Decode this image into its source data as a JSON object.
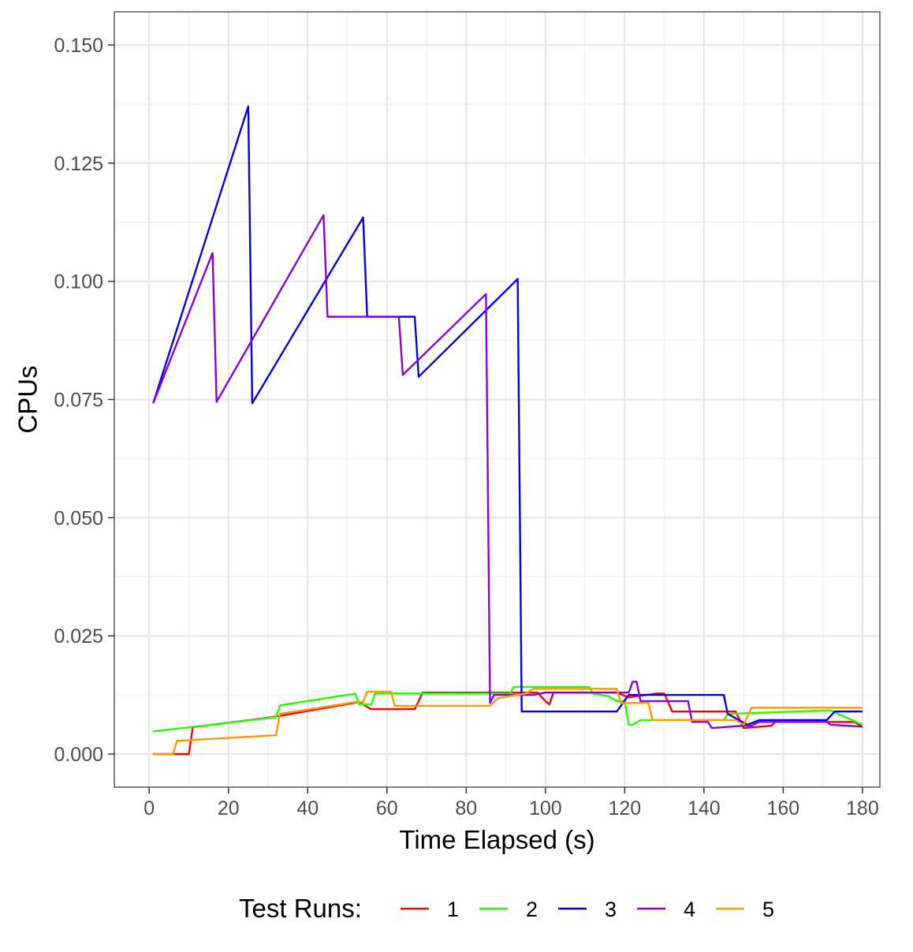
{
  "chart_data": {
    "type": "line",
    "title": "",
    "xlabel": "Time Elapsed (s)",
    "ylabel": "CPUs",
    "xlim": [
      -8.8,
      184.4
    ],
    "ylim": [
      -0.007,
      0.157
    ],
    "x_ticks": [
      0,
      20,
      40,
      60,
      80,
      100,
      120,
      140,
      160,
      180
    ],
    "x_tick_labels": [
      "0",
      "20",
      "40",
      "60",
      "80",
      "100",
      "120",
      "140",
      "160",
      "180"
    ],
    "y_ticks": [
      0,
      0.025,
      0.05,
      0.075,
      0.1,
      0.125,
      0.15
    ],
    "y_tick_labels": [
      "0.000",
      "0.025",
      "0.050",
      "0.075",
      "0.100",
      "0.125",
      "0.150"
    ],
    "grid": true,
    "legend": {
      "title": "Test Runs:",
      "position": "bottom"
    },
    "series": [
      {
        "name": "1",
        "color": "#FF0000",
        "points": [
          [
            1,
            0
          ],
          [
            10,
            0
          ],
          [
            11,
            0.0057
          ],
          [
            31,
            0.0078
          ],
          [
            53,
            0.011
          ],
          [
            56,
            0.0095
          ],
          [
            67,
            0.0095
          ],
          [
            69,
            0.013
          ],
          [
            98,
            0.013
          ],
          [
            100,
            0.0112
          ],
          [
            101,
            0.0105
          ],
          [
            102,
            0.013
          ],
          [
            118,
            0.013
          ],
          [
            121,
            0.012
          ],
          [
            128,
            0.0128
          ],
          [
            130,
            0.0128
          ],
          [
            132,
            0.009
          ],
          [
            148,
            0.009
          ],
          [
            150,
            0.0055
          ],
          [
            157,
            0.006
          ],
          [
            158,
            0.0068
          ],
          [
            171,
            0.0068
          ],
          [
            178,
            0.0068
          ],
          [
            180,
            0.0057
          ]
        ]
      },
      {
        "name": "2",
        "color": "#22FF00",
        "points": [
          [
            1,
            0.0048
          ],
          [
            32,
            0.0078
          ],
          [
            33,
            0.0103
          ],
          [
            52,
            0.0128
          ],
          [
            53,
            0.0105
          ],
          [
            56,
            0.0105
          ],
          [
            57,
            0.0128
          ],
          [
            91,
            0.0128
          ],
          [
            92,
            0.0142
          ],
          [
            111,
            0.0142
          ],
          [
            112,
            0.0128
          ],
          [
            116,
            0.0122
          ],
          [
            118,
            0.0112
          ],
          [
            120,
            0.0112
          ],
          [
            121,
            0.0062
          ],
          [
            122,
            0.0062
          ],
          [
            124,
            0.0072
          ],
          [
            145,
            0.0072
          ],
          [
            146,
            0.0085
          ],
          [
            170,
            0.0092
          ],
          [
            172,
            0.0092
          ],
          [
            180,
            0.0062
          ]
        ]
      },
      {
        "name": "3",
        "color": "#0000EE",
        "points": [
          [
            1,
            0.0742
          ],
          [
            25,
            0.137
          ],
          [
            26,
            0.0742
          ],
          [
            54,
            0.1135
          ],
          [
            55,
            0.0925
          ],
          [
            67,
            0.0925
          ],
          [
            68,
            0.0798
          ],
          [
            93,
            0.1005
          ],
          [
            94,
            0.009
          ],
          [
            118,
            0.009
          ],
          [
            121,
            0.0125
          ],
          [
            145,
            0.0125
          ],
          [
            146,
            0.0085
          ],
          [
            151,
            0.0062
          ],
          [
            154,
            0.0072
          ],
          [
            171,
            0.0072
          ],
          [
            173,
            0.009
          ],
          [
            180,
            0.009
          ]
        ]
      },
      {
        "name": "4",
        "color": "#8A00E6",
        "points": [
          [
            1,
            0.0742
          ],
          [
            16,
            0.106
          ],
          [
            17,
            0.0745
          ],
          [
            44,
            0.114
          ],
          [
            45,
            0.0925
          ],
          [
            63,
            0.0925
          ],
          [
            64,
            0.0802
          ],
          [
            85,
            0.0973
          ],
          [
            86,
            0.0108
          ],
          [
            87,
            0.0125
          ],
          [
            97,
            0.0125
          ],
          [
            100,
            0.013
          ],
          [
            118,
            0.013
          ],
          [
            121,
            0.013
          ],
          [
            122,
            0.0153
          ],
          [
            123,
            0.0153
          ],
          [
            124,
            0.0112
          ],
          [
            136,
            0.0112
          ],
          [
            137,
            0.0068
          ],
          [
            141,
            0.0068
          ],
          [
            142,
            0.0055
          ],
          [
            150,
            0.006
          ],
          [
            152,
            0.006
          ],
          [
            154,
            0.0068
          ],
          [
            171,
            0.0068
          ],
          [
            172,
            0.0062
          ],
          [
            180,
            0.0058
          ]
        ]
      },
      {
        "name": "5",
        "color": "#FF9900",
        "points": [
          [
            1,
            0
          ],
          [
            6,
            0
          ],
          [
            7,
            0.0028
          ],
          [
            32,
            0.004
          ],
          [
            33,
            0.0085
          ],
          [
            52,
            0.011
          ],
          [
            54,
            0.011
          ],
          [
            55,
            0.0132
          ],
          [
            61,
            0.0132
          ],
          [
            62,
            0.0102
          ],
          [
            86,
            0.0102
          ],
          [
            88,
            0.0118
          ],
          [
            95,
            0.0128
          ],
          [
            97,
            0.0138
          ],
          [
            118,
            0.0138
          ],
          [
            119,
            0.0108
          ],
          [
            126,
            0.0108
          ],
          [
            127,
            0.0072
          ],
          [
            148,
            0.0072
          ],
          [
            150,
            0.0062
          ],
          [
            152,
            0.0098
          ],
          [
            180,
            0.0098
          ]
        ]
      }
    ]
  }
}
